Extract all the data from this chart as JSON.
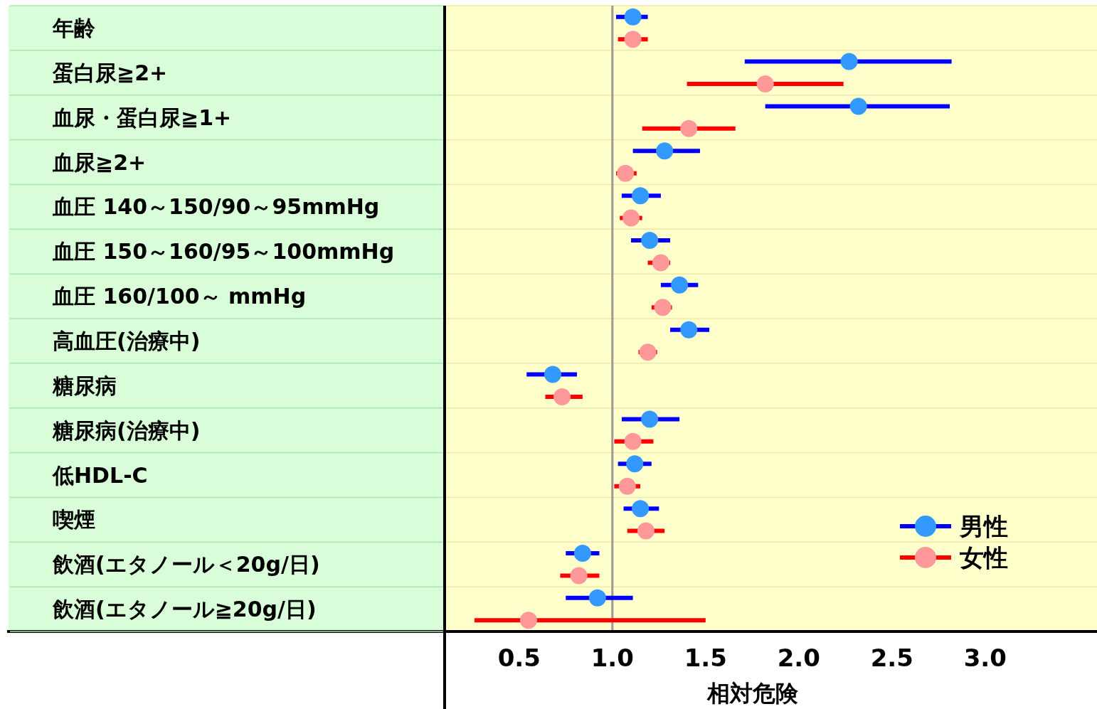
{
  "chart_data": {
    "type": "scatter",
    "orientation": "horizontal",
    "xlabel": "相対危険",
    "categories": [
      "年齢",
      "蛋白尿≧2+",
      "血尿・蛋白尿≧1+",
      "血尿≧2+",
      "血圧 140～150/90～95mmHg",
      "血圧 150～160/95～100mmHg",
      "血圧 160/100～ mmHg",
      "高血圧(治療中)",
      "糖尿病",
      "糖尿病(治療中)",
      "低HDL-C",
      "喫煙",
      "飲酒(エタノール＜20g/日)",
      "飲酒(エタノール≧20g/日)"
    ],
    "series": [
      {
        "name": "男性",
        "color": "#3399ff",
        "values": [
          1.11,
          2.27,
          2.32,
          1.28,
          1.15,
          1.2,
          1.36,
          1.41,
          0.68,
          1.2,
          1.12,
          1.15,
          0.84,
          0.92
        ],
        "errors": [
          [
            1.02,
            1.19
          ],
          [
            1.71,
            2.82
          ],
          [
            1.82,
            2.81
          ],
          [
            1.11,
            1.47
          ],
          [
            1.05,
            1.26
          ],
          [
            1.1,
            1.31
          ],
          [
            1.26,
            1.46
          ],
          [
            1.31,
            1.52
          ],
          [
            0.54,
            0.81
          ],
          [
            1.05,
            1.36
          ],
          [
            1.03,
            1.21
          ],
          [
            1.06,
            1.25
          ],
          [
            0.75,
            0.93
          ],
          [
            0.75,
            1.11
          ]
        ]
      },
      {
        "name": "女性",
        "color": "#ff9999",
        "values": [
          1.11,
          1.82,
          1.41,
          1.07,
          1.1,
          1.26,
          1.27,
          1.19,
          0.73,
          1.11,
          1.08,
          1.18,
          0.82,
          0.55
        ],
        "errors": [
          [
            1.03,
            1.19
          ],
          [
            1.4,
            2.24
          ],
          [
            1.16,
            1.66
          ],
          [
            1.02,
            1.13
          ],
          [
            1.04,
            1.16
          ],
          [
            1.19,
            1.31
          ],
          [
            1.21,
            1.32
          ],
          [
            1.14,
            1.24
          ],
          [
            0.64,
            0.84
          ],
          [
            1.01,
            1.22
          ],
          [
            1.01,
            1.15
          ],
          [
            1.08,
            1.28
          ],
          [
            0.72,
            0.93
          ],
          [
            0.26,
            1.5
          ]
        ]
      }
    ],
    "xlim": [
      0.1,
      3.6
    ],
    "xticks": [
      {
        "value": 0.5,
        "label": "0.5"
      },
      {
        "value": 1,
        "label": "1.0"
      },
      {
        "value": 1.5,
        "label": "1.5"
      },
      {
        "value": 2,
        "label": "2.0"
      },
      {
        "value": 2.5,
        "label": "2.5"
      },
      {
        "value": 3,
        "label": "3.0"
      }
    ],
    "ref_lines": [
      {
        "axis": "x",
        "value": 1,
        "color": "#999999"
      }
    ],
    "grid": "y",
    "legend": "bottom right",
    "marker": "circle"
  }
}
